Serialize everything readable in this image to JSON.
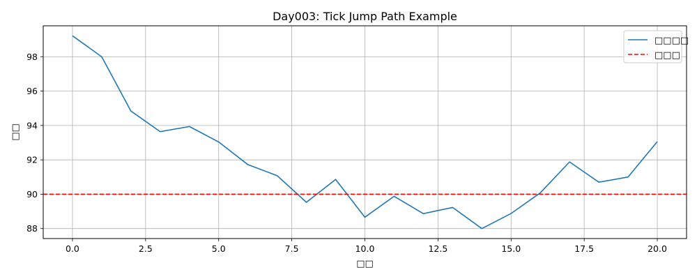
{
  "chart_data": {
    "type": "line",
    "title": "Day003: Tick Jump Path Example",
    "xlabel": "□□",
    "ylabel": "□□",
    "xlim": [
      -1,
      21
    ],
    "ylim": [
      87.42,
      99.8
    ],
    "xticks": [
      0.0,
      2.5,
      5.0,
      7.5,
      10.0,
      12.5,
      15.0,
      17.5,
      20.0
    ],
    "xtick_labels": [
      "0.0",
      "2.5",
      "5.0",
      "7.5",
      "10.0",
      "12.5",
      "15.0",
      "17.5",
      "20.0"
    ],
    "yticks": [
      88,
      90,
      92,
      94,
      96,
      98
    ],
    "ytick_labels": [
      "88",
      "90",
      "92",
      "94",
      "96",
      "98"
    ],
    "grid": true,
    "legend_position": "top-right",
    "series": [
      {
        "name": "□□□□",
        "color": "#1f77b4",
        "style": "solid",
        "x": [
          0,
          1,
          2,
          3,
          4,
          5,
          6,
          7,
          8,
          9,
          10,
          11,
          12,
          13,
          14,
          15,
          16,
          17,
          18,
          19,
          20
        ],
        "y": [
          99.22,
          98.0,
          94.84,
          93.64,
          93.94,
          93.04,
          91.72,
          91.08,
          89.53,
          90.86,
          88.66,
          89.88,
          88.87,
          89.23,
          88.0,
          88.88,
          90.08,
          91.88,
          90.7,
          91.0,
          93.06
        ]
      },
      {
        "name": "□□□",
        "color": "#ff0000",
        "style": "dashed",
        "hline": 90
      }
    ]
  }
}
